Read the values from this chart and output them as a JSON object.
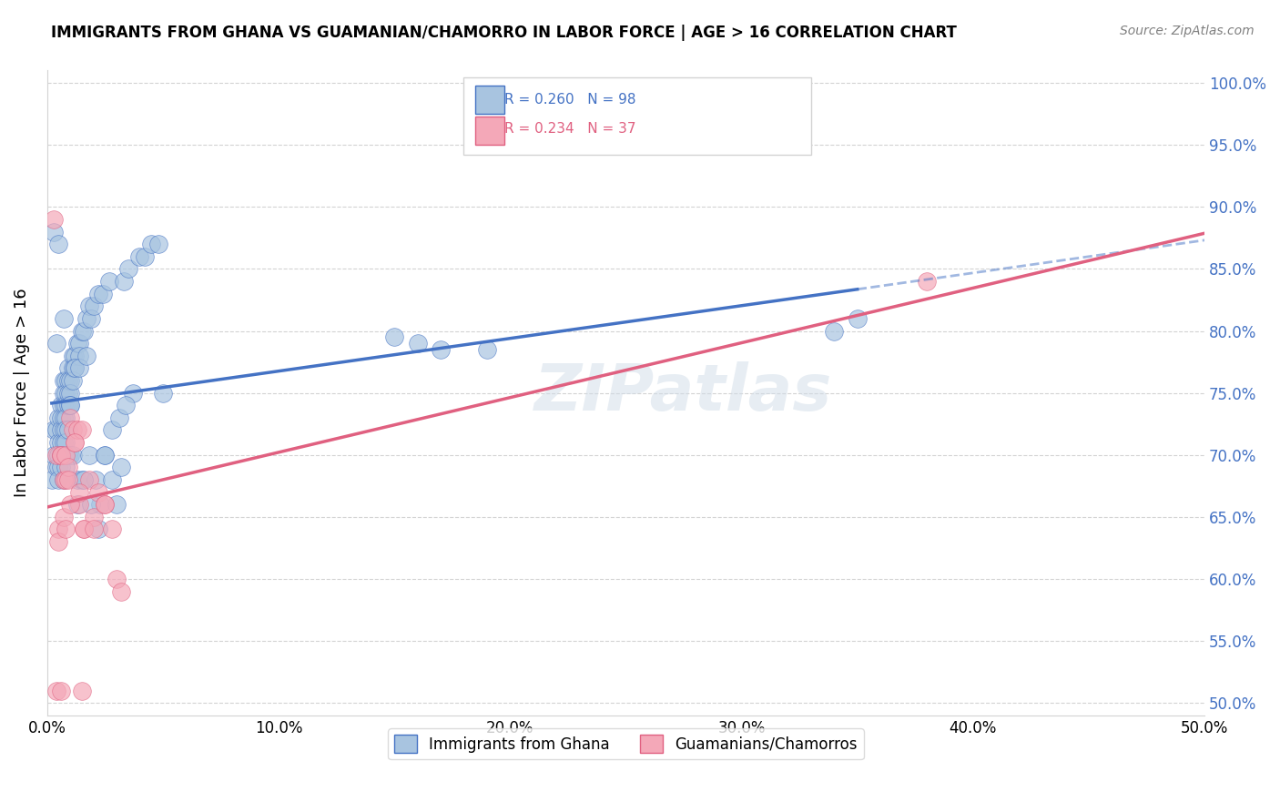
{
  "title": "IMMIGRANTS FROM GHANA VS GUAMANIAN/CHAMORRO IN LABOR FORCE | AGE > 16 CORRELATION CHART",
  "source": "Source: ZipAtlas.com",
  "ylabel": "In Labor Force | Age > 16",
  "xlabel_ticks": [
    "0.0%",
    "10.0%",
    "20.0%",
    "30.0%",
    "40.0%",
    "50.0%"
  ],
  "ylabel_ticks": [
    "50.0%",
    "55.0%",
    "60.0%",
    "65.0%",
    "70.0%",
    "75.0%",
    "80.0%",
    "85.0%",
    "90.0%",
    "95.0%",
    "100.0%"
  ],
  "xlim": [
    0.0,
    0.5
  ],
  "ylim": [
    0.49,
    1.01
  ],
  "ghana_R": 0.26,
  "ghana_N": 98,
  "guam_R": 0.234,
  "guam_N": 37,
  "ghana_color": "#a8c4e0",
  "guam_color": "#f4a8b8",
  "ghana_line_color": "#4472c4",
  "guam_line_color": "#e06080",
  "legend_label_ghana": "Immigrants from Ghana",
  "legend_label_guam": "Guamanians/Chamorros",
  "watermark": "ZIPatlas",
  "ghana_x": [
    0.002,
    0.003,
    0.003,
    0.004,
    0.004,
    0.005,
    0.005,
    0.005,
    0.005,
    0.005,
    0.006,
    0.006,
    0.006,
    0.006,
    0.006,
    0.006,
    0.007,
    0.007,
    0.007,
    0.007,
    0.007,
    0.007,
    0.008,
    0.008,
    0.008,
    0.008,
    0.008,
    0.008,
    0.009,
    0.009,
    0.009,
    0.009,
    0.009,
    0.01,
    0.01,
    0.01,
    0.01,
    0.011,
    0.011,
    0.011,
    0.012,
    0.012,
    0.013,
    0.013,
    0.014,
    0.014,
    0.015,
    0.015,
    0.016,
    0.017,
    0.018,
    0.018,
    0.019,
    0.02,
    0.021,
    0.022,
    0.023,
    0.024,
    0.025,
    0.027,
    0.028,
    0.03,
    0.032,
    0.033,
    0.035,
    0.037,
    0.04,
    0.042,
    0.045,
    0.048,
    0.05,
    0.003,
    0.004,
    0.005,
    0.006,
    0.007,
    0.007,
    0.008,
    0.009,
    0.01,
    0.011,
    0.012,
    0.013,
    0.014,
    0.016,
    0.017,
    0.019,
    0.022,
    0.025,
    0.028,
    0.031,
    0.034,
    0.15,
    0.16,
    0.17,
    0.19,
    0.34,
    0.35
  ],
  "ghana_y": [
    0.68,
    0.72,
    0.7,
    0.72,
    0.69,
    0.73,
    0.71,
    0.7,
    0.69,
    0.68,
    0.74,
    0.73,
    0.72,
    0.71,
    0.7,
    0.69,
    0.76,
    0.75,
    0.74,
    0.73,
    0.72,
    0.71,
    0.76,
    0.75,
    0.74,
    0.73,
    0.72,
    0.71,
    0.77,
    0.76,
    0.75,
    0.74,
    0.7,
    0.76,
    0.75,
    0.74,
    0.7,
    0.78,
    0.77,
    0.7,
    0.78,
    0.77,
    0.79,
    0.68,
    0.79,
    0.78,
    0.8,
    0.68,
    0.8,
    0.81,
    0.82,
    0.7,
    0.81,
    0.82,
    0.68,
    0.83,
    0.66,
    0.83,
    0.7,
    0.84,
    0.68,
    0.66,
    0.69,
    0.84,
    0.85,
    0.75,
    0.86,
    0.86,
    0.87,
    0.87,
    0.75,
    0.88,
    0.79,
    0.87,
    0.7,
    0.81,
    0.68,
    0.69,
    0.72,
    0.74,
    0.76,
    0.77,
    0.66,
    0.77,
    0.68,
    0.78,
    0.66,
    0.64,
    0.7,
    0.72,
    0.73,
    0.74,
    0.795,
    0.79,
    0.785,
    0.785,
    0.8,
    0.81
  ],
  "guam_x": [
    0.003,
    0.004,
    0.005,
    0.005,
    0.006,
    0.006,
    0.007,
    0.007,
    0.008,
    0.008,
    0.009,
    0.009,
    0.01,
    0.011,
    0.012,
    0.013,
    0.014,
    0.015,
    0.016,
    0.018,
    0.02,
    0.022,
    0.025,
    0.028,
    0.03,
    0.008,
    0.01,
    0.012,
    0.014,
    0.016,
    0.02,
    0.025,
    0.032,
    0.38,
    0.004,
    0.006,
    0.015
  ],
  "guam_y": [
    0.89,
    0.7,
    0.64,
    0.63,
    0.7,
    0.7,
    0.65,
    0.68,
    0.7,
    0.68,
    0.69,
    0.68,
    0.73,
    0.72,
    0.71,
    0.72,
    0.66,
    0.72,
    0.64,
    0.68,
    0.65,
    0.67,
    0.66,
    0.64,
    0.6,
    0.64,
    0.66,
    0.71,
    0.67,
    0.64,
    0.64,
    0.66,
    0.59,
    0.84,
    0.51,
    0.51,
    0.51
  ]
}
